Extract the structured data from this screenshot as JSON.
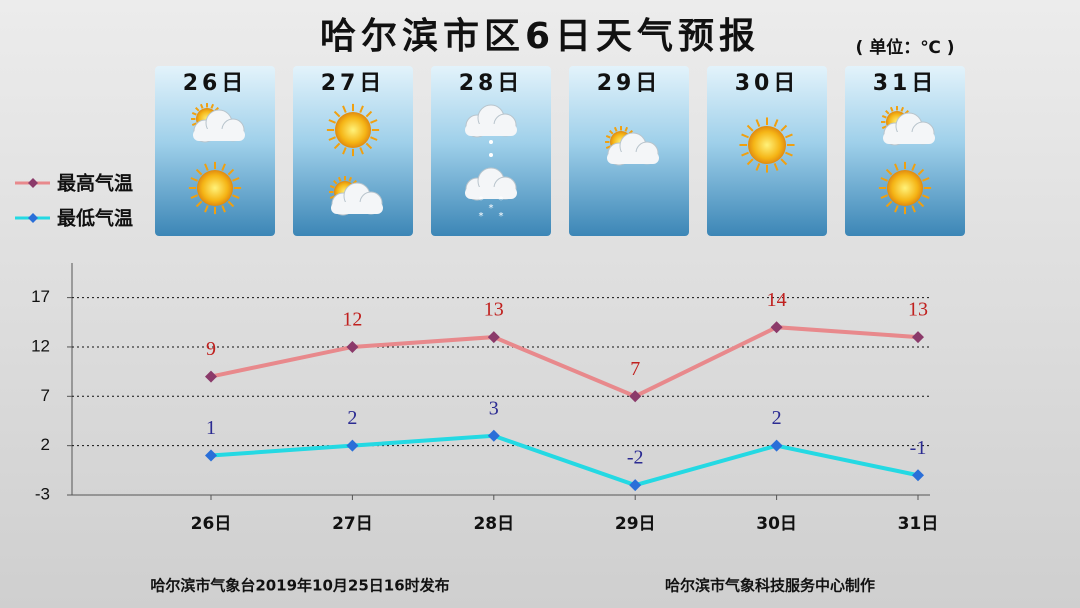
{
  "chart_data": {
    "type": "line",
    "title": "哈尔滨市区6日天气预报",
    "subtitle": "( 单位：℃ )",
    "categories": [
      "26日",
      "27日",
      "28日",
      "29日",
      "30日",
      "31日"
    ],
    "series": [
      {
        "name": "最高气温",
        "color": "#e8898c",
        "marker_color": "#8b3a6a",
        "label_color": "#c0201e",
        "values": [
          9,
          12,
          13,
          7,
          14,
          13
        ]
      },
      {
        "name": "最低气温",
        "color": "#24d9e3",
        "marker_color": "#2a6fd8",
        "label_color": "#2b2b92",
        "values": [
          1,
          2,
          3,
          -2,
          2,
          -1
        ]
      }
    ],
    "ylim": [
      -3,
      20
    ],
    "yticks": [
      -3,
      2,
      7,
      12,
      17
    ],
    "grid": true,
    "footer": [
      "哈尔滨市气象台2019年10月25日16时发布",
      "哈尔滨市气象科技服务中心制作"
    ]
  }
}
